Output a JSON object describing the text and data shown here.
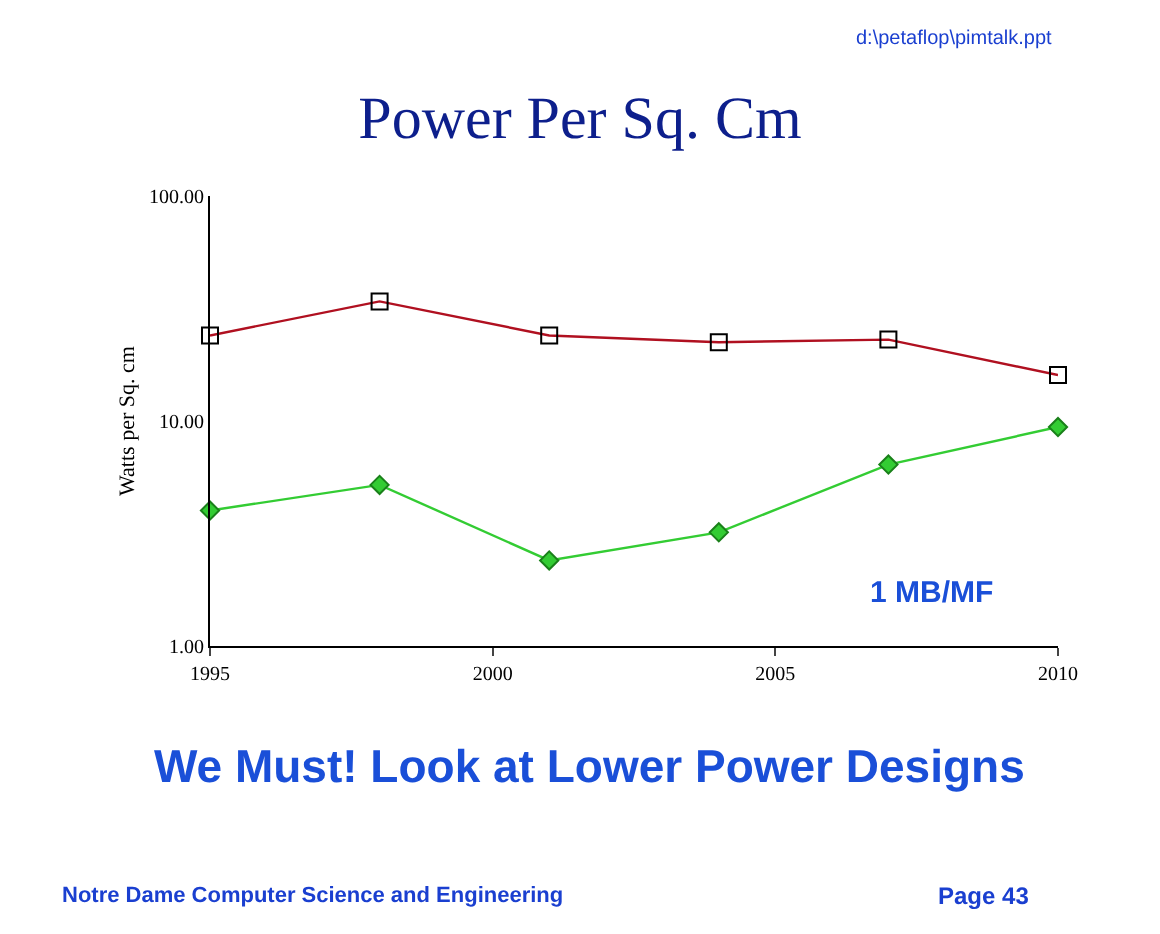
{
  "chart_data": {
    "type": "line",
    "title": "Power Per Sq. Cm",
    "ylabel": "Watts per Sq. cm",
    "x": [
      1995,
      1998,
      2001,
      2004,
      2007,
      2010
    ],
    "series": [
      {
        "color": "#b01020",
        "marker": "square",
        "values": [
          24,
          34,
          24,
          22.4,
          23,
          16
        ]
      },
      {
        "color": "#33cc33",
        "marker": "diamond",
        "values": [
          4.0,
          5.2,
          2.4,
          3.2,
          6.4,
          9.4
        ]
      }
    ],
    "log": "y",
    "xlim": [
      1995,
      2010
    ],
    "xticks": [
      1995,
      2000,
      2005,
      2010
    ],
    "ylim": [
      1,
      100
    ],
    "yticks": [
      {
        "value": 1,
        "label": "1.00"
      },
      {
        "value": 10,
        "label": "10.00"
      },
      {
        "value": 100,
        "label": "100.00"
      }
    ],
    "line_style": "solid",
    "annotations": [
      "d:\\petaflop\\pimtalk.ppt",
      "1 MB/MF",
      "We Must! Look at Lower Power Designs",
      "Notre Dame Computer Science and Engineering",
      "Page 43"
    ]
  }
}
